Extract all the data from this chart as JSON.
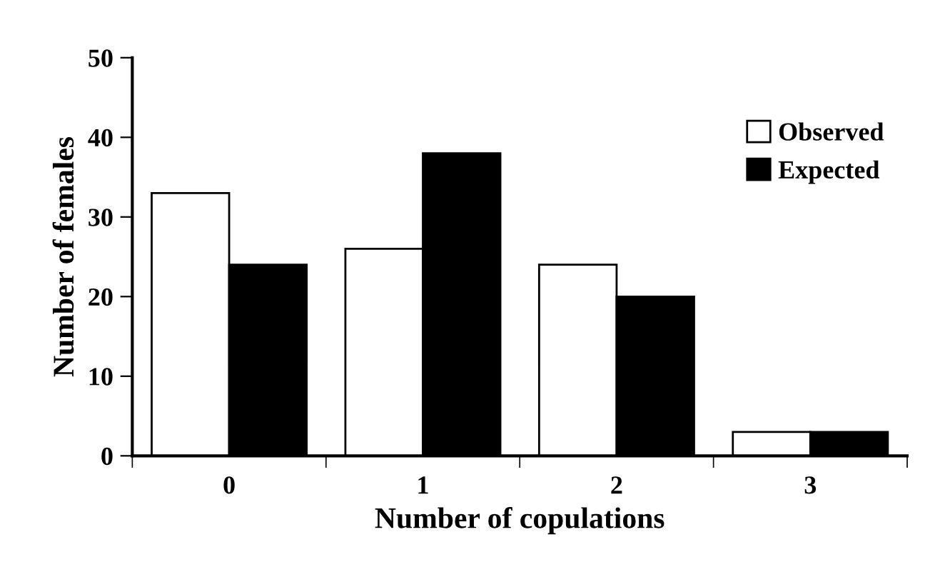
{
  "chart_data": {
    "type": "bar",
    "xlabel": "Number of copulations",
    "ylabel": "Number of females",
    "categories": [
      "0",
      "1",
      "2",
      "3"
    ],
    "series": [
      {
        "name": "Observed",
        "color": "#ffffff",
        "values": [
          33,
          26,
          24,
          3
        ]
      },
      {
        "name": "Expected",
        "color": "#000000",
        "values": [
          24,
          38,
          20,
          3
        ]
      }
    ],
    "ylim": [
      0,
      50
    ],
    "yticks": [
      0,
      10,
      20,
      30,
      40,
      50
    ],
    "grid": false,
    "legend": "top right"
  }
}
